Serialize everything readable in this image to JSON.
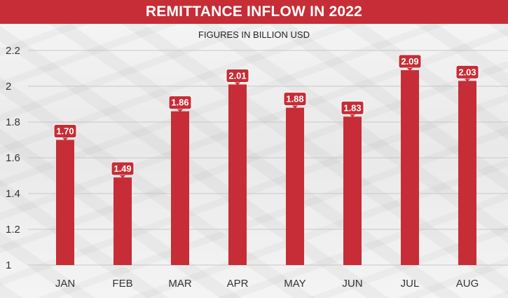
{
  "title": "REMITTANCE INFLOW IN 2022",
  "subtitle": "FIGURES IN BILLION USD",
  "colors": {
    "bar": "#c62d36",
    "grid": "#c8c8c8",
    "text": "#333333"
  },
  "chart_data": {
    "type": "bar",
    "title": "REMITTANCE INFLOW IN 2022",
    "subtitle": "FIGURES IN BILLION USD",
    "categories": [
      "JAN",
      "FEB",
      "MAR",
      "APR",
      "MAY",
      "JUN",
      "JUL",
      "AUG"
    ],
    "values": [
      1.7,
      1.49,
      1.86,
      2.01,
      1.88,
      1.83,
      2.09,
      2.03
    ],
    "value_labels": [
      "1.70",
      "1.49",
      "1.86",
      "2.01",
      "1.88",
      "1.83",
      "2.09",
      "2.03"
    ],
    "yticks": [
      "1",
      "1.2",
      "1.4",
      "1.6",
      "1.8",
      "2",
      "2.2"
    ],
    "ylim": [
      1,
      2.2
    ],
    "xlabel": "",
    "ylabel": "",
    "grid": true,
    "legend": "none"
  }
}
